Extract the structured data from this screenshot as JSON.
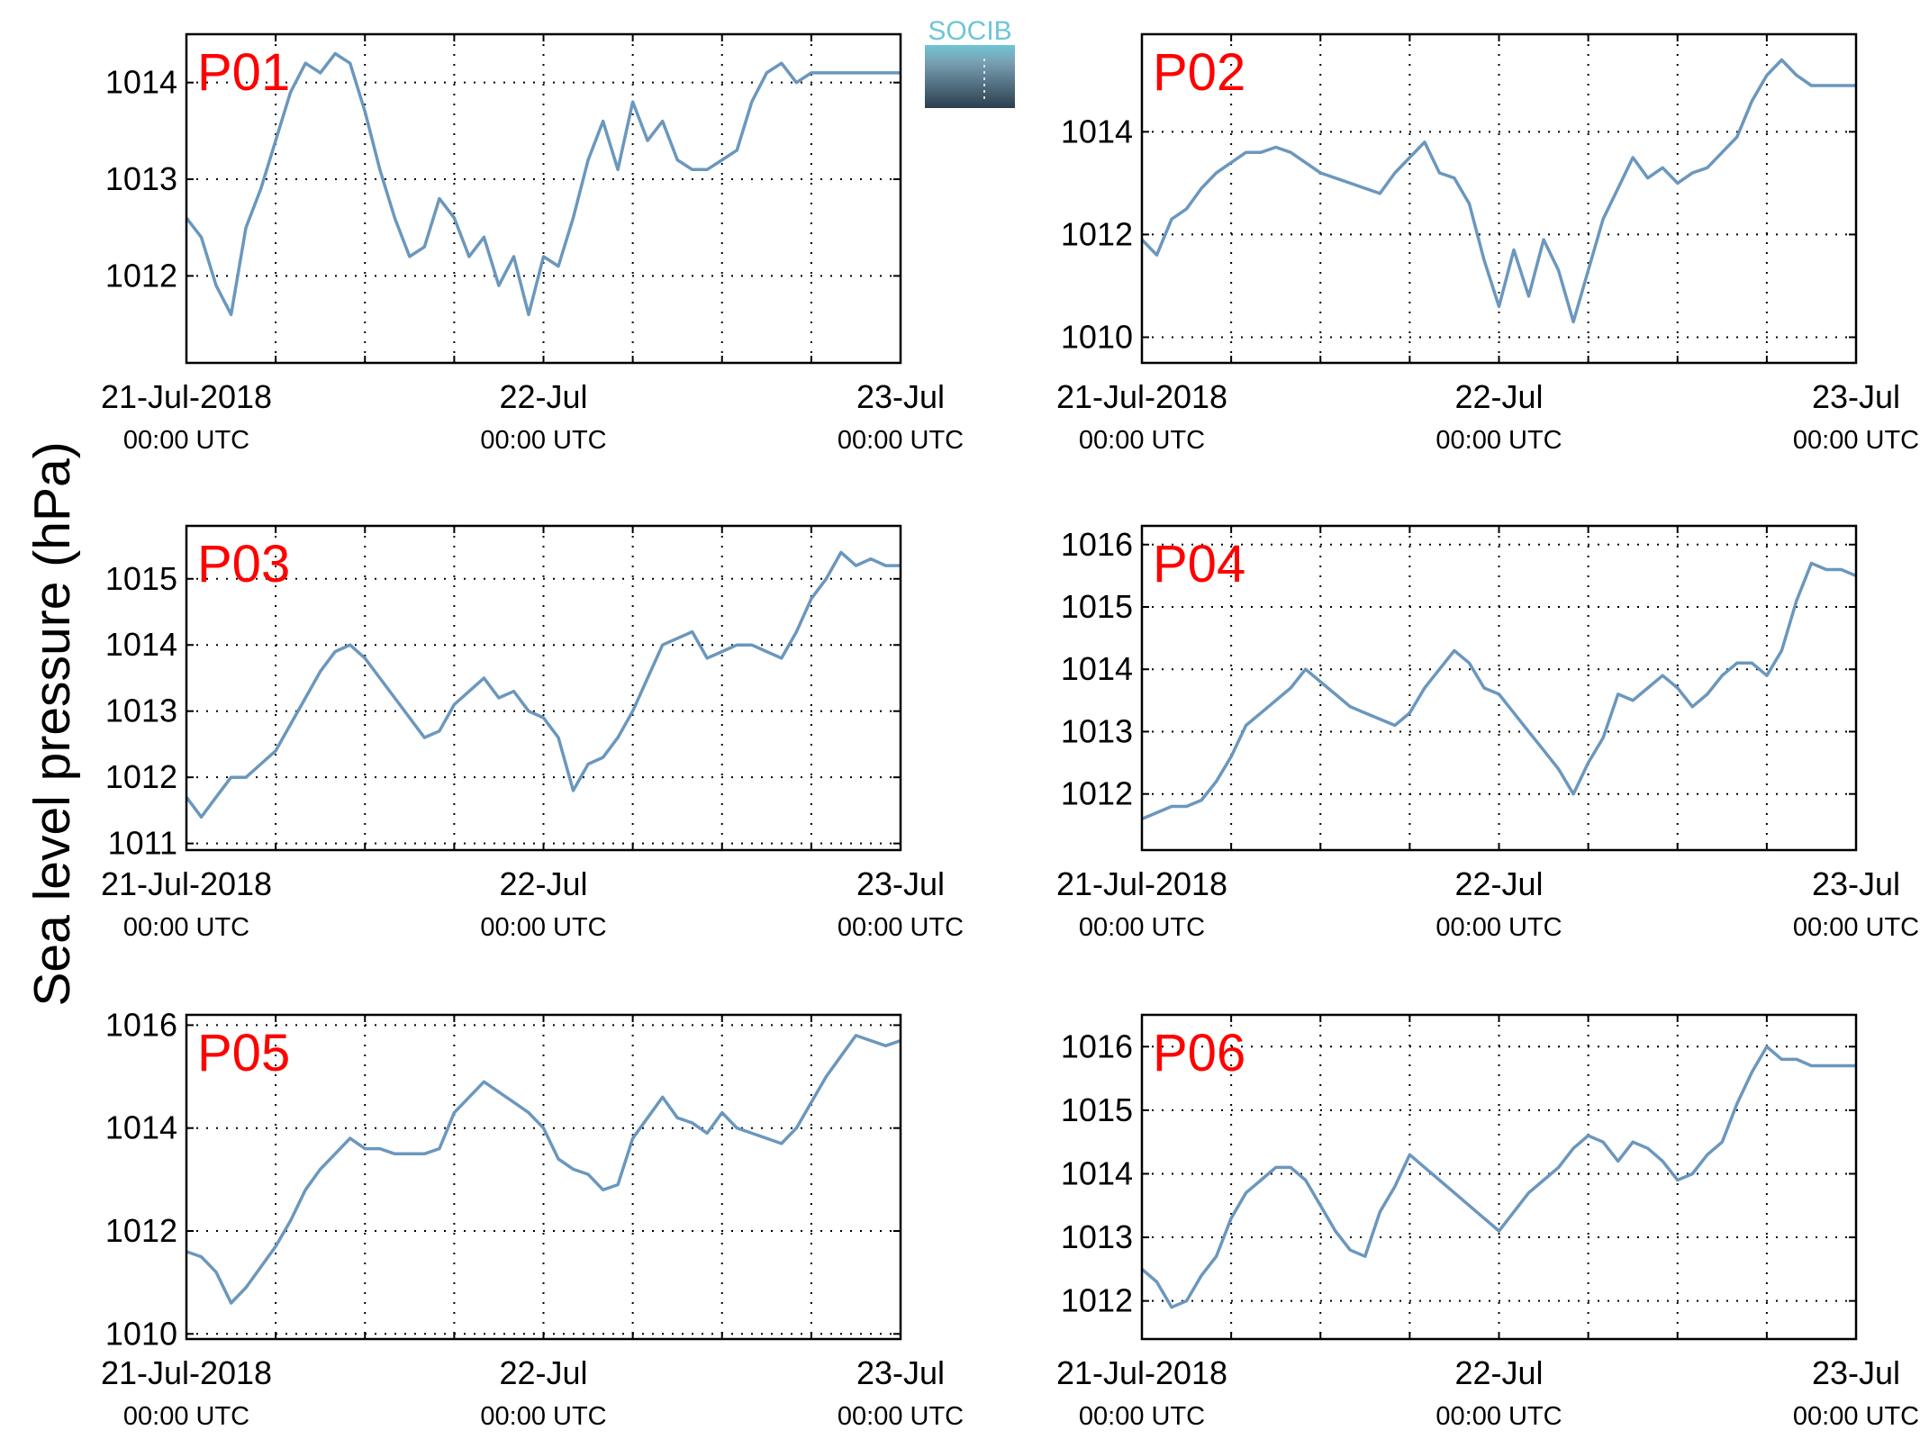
{
  "figure": {
    "ylabel": "Sea level pressure (hPa)",
    "logo_text": "SOCIB",
    "x_tick_labels": [
      "21-Jul-2018",
      "22-Jul",
      "23-Jul"
    ],
    "x_tick_sublabels": [
      "00:00 UTC",
      "00:00 UTC",
      "00:00 UTC"
    ],
    "line_color": "#6b97bd",
    "label_color": "#ff0000"
  },
  "chart_data": [
    {
      "type": "line",
      "title": "P01",
      "xlim": [
        0,
        48
      ],
      "ylim": [
        1011.1,
        1014.5
      ],
      "yticks": [
        1012,
        1013,
        1014
      ],
      "x": [
        0,
        1,
        2,
        3,
        4,
        5,
        6,
        7,
        8,
        9,
        10,
        11,
        12,
        13,
        14,
        15,
        16,
        17,
        18,
        19,
        20,
        21,
        22,
        23,
        24,
        25,
        26,
        27,
        28,
        29,
        30,
        31,
        32,
        33,
        34,
        35,
        36,
        37,
        38,
        39,
        40,
        41,
        42,
        43,
        44,
        45,
        46,
        47,
        48
      ],
      "y": [
        1012.6,
        1012.4,
        1011.9,
        1011.6,
        1012.5,
        1012.9,
        1013.4,
        1013.9,
        1014.2,
        1014.1,
        1014.3,
        1014.2,
        1013.7,
        1013.1,
        1012.6,
        1012.2,
        1012.3,
        1012.8,
        1012.6,
        1012.2,
        1012.4,
        1011.9,
        1012.2,
        1011.6,
        1012.2,
        1012.1,
        1012.6,
        1013.2,
        1013.6,
        1013.1,
        1013.8,
        1013.4,
        1013.6,
        1013.2,
        1013.1,
        1013.1,
        1013.2,
        1013.3,
        1013.8,
        1014.1,
        1014.2,
        1014.0,
        1014.1,
        1014.1,
        1014.1,
        1014.1,
        1014.1,
        1014.1,
        1014.1
      ]
    },
    {
      "type": "line",
      "title": "P02",
      "xlim": [
        0,
        48
      ],
      "ylim": [
        1009.5,
        1015.9
      ],
      "yticks": [
        1010,
        1012,
        1014
      ],
      "x": [
        0,
        1,
        2,
        3,
        4,
        5,
        6,
        7,
        8,
        9,
        10,
        11,
        12,
        13,
        14,
        15,
        16,
        17,
        18,
        19,
        20,
        21,
        22,
        23,
        24,
        25,
        26,
        27,
        28,
        29,
        30,
        31,
        32,
        33,
        34,
        35,
        36,
        37,
        38,
        39,
        40,
        41,
        42,
        43,
        44,
        45,
        46,
        47,
        48
      ],
      "y": [
        1011.9,
        1011.6,
        1012.3,
        1012.5,
        1012.9,
        1013.2,
        1013.4,
        1013.6,
        1013.6,
        1013.7,
        1013.6,
        1013.4,
        1013.2,
        1013.1,
        1013.0,
        1012.9,
        1012.8,
        1013.2,
        1013.5,
        1013.8,
        1013.2,
        1013.1,
        1012.6,
        1011.5,
        1010.6,
        1011.7,
        1010.8,
        1011.9,
        1011.3,
        1010.3,
        1011.3,
        1012.3,
        1012.9,
        1013.5,
        1013.1,
        1013.3,
        1013.0,
        1013.2,
        1013.3,
        1013.6,
        1013.9,
        1014.6,
        1015.1,
        1015.4,
        1015.1,
        1014.9,
        1014.9,
        1014.9,
        1014.9
      ]
    },
    {
      "type": "line",
      "title": "P03",
      "xlim": [
        0,
        48
      ],
      "ylim": [
        1010.9,
        1015.8
      ],
      "yticks": [
        1011,
        1012,
        1013,
        1014,
        1015
      ],
      "x": [
        0,
        1,
        2,
        3,
        4,
        5,
        6,
        7,
        8,
        9,
        10,
        11,
        12,
        13,
        14,
        15,
        16,
        17,
        18,
        19,
        20,
        21,
        22,
        23,
        24,
        25,
        26,
        27,
        28,
        29,
        30,
        31,
        32,
        33,
        34,
        35,
        36,
        37,
        38,
        39,
        40,
        41,
        42,
        43,
        44,
        45,
        46,
        47,
        48
      ],
      "y": [
        1011.7,
        1011.4,
        1011.7,
        1012.0,
        1012.0,
        1012.2,
        1012.4,
        1012.8,
        1013.2,
        1013.6,
        1013.9,
        1014.0,
        1013.8,
        1013.5,
        1013.2,
        1012.9,
        1012.6,
        1012.7,
        1013.1,
        1013.3,
        1013.5,
        1013.2,
        1013.3,
        1013.0,
        1012.9,
        1012.6,
        1011.8,
        1012.2,
        1012.3,
        1012.6,
        1013.0,
        1013.5,
        1014.0,
        1014.1,
        1014.2,
        1013.8,
        1013.9,
        1014.0,
        1014.0,
        1013.9,
        1013.8,
        1014.2,
        1014.7,
        1015.0,
        1015.4,
        1015.2,
        1015.3,
        1015.2,
        1015.2
      ]
    },
    {
      "type": "line",
      "title": "P04",
      "xlim": [
        0,
        48
      ],
      "ylim": [
        1011.1,
        1016.3
      ],
      "yticks": [
        1012,
        1013,
        1014,
        1015,
        1016
      ],
      "x": [
        0,
        1,
        2,
        3,
        4,
        5,
        6,
        7,
        8,
        9,
        10,
        11,
        12,
        13,
        14,
        15,
        16,
        17,
        18,
        19,
        20,
        21,
        22,
        23,
        24,
        25,
        26,
        27,
        28,
        29,
        30,
        31,
        32,
        33,
        34,
        35,
        36,
        37,
        38,
        39,
        40,
        41,
        42,
        43,
        44,
        45,
        46,
        47,
        48
      ],
      "y": [
        1011.6,
        1011.7,
        1011.8,
        1011.8,
        1011.9,
        1012.2,
        1012.6,
        1013.1,
        1013.3,
        1013.5,
        1013.7,
        1014.0,
        1013.8,
        1013.6,
        1013.4,
        1013.3,
        1013.2,
        1013.1,
        1013.3,
        1013.7,
        1014.0,
        1014.3,
        1014.1,
        1013.7,
        1013.6,
        1013.3,
        1013.0,
        1012.7,
        1012.4,
        1012.0,
        1012.5,
        1012.9,
        1013.6,
        1013.5,
        1013.7,
        1013.9,
        1013.7,
        1013.4,
        1013.6,
        1013.9,
        1014.1,
        1014.1,
        1013.9,
        1014.3,
        1015.1,
        1015.7,
        1015.6,
        1015.6,
        1015.5
      ]
    },
    {
      "type": "line",
      "title": "P05",
      "xlim": [
        0,
        48
      ],
      "ylim": [
        1009.9,
        1016.2
      ],
      "yticks": [
        1010,
        1012,
        1014,
        1016
      ],
      "x": [
        0,
        1,
        2,
        3,
        4,
        5,
        6,
        7,
        8,
        9,
        10,
        11,
        12,
        13,
        14,
        15,
        16,
        17,
        18,
        19,
        20,
        21,
        22,
        23,
        24,
        25,
        26,
        27,
        28,
        29,
        30,
        31,
        32,
        33,
        34,
        35,
        36,
        37,
        38,
        39,
        40,
        41,
        42,
        43,
        44,
        45,
        46,
        47,
        48
      ],
      "y": [
        1011.6,
        1011.5,
        1011.2,
        1010.6,
        1010.9,
        1011.3,
        1011.7,
        1012.2,
        1012.8,
        1013.2,
        1013.5,
        1013.8,
        1013.6,
        1013.6,
        1013.5,
        1013.5,
        1013.5,
        1013.6,
        1014.3,
        1014.6,
        1014.9,
        1014.7,
        1014.5,
        1014.3,
        1014.0,
        1013.4,
        1013.2,
        1013.1,
        1012.8,
        1012.9,
        1013.8,
        1014.2,
        1014.6,
        1014.2,
        1014.1,
        1013.9,
        1014.3,
        1014.0,
        1013.9,
        1013.8,
        1013.7,
        1014.0,
        1014.5,
        1015.0,
        1015.4,
        1015.8,
        1015.7,
        1015.6,
        1015.7
      ]
    },
    {
      "type": "line",
      "title": "P06",
      "xlim": [
        0,
        48
      ],
      "ylim": [
        1011.4,
        1016.5
      ],
      "yticks": [
        1012,
        1013,
        1014,
        1015,
        1016
      ],
      "x": [
        0,
        1,
        2,
        3,
        4,
        5,
        6,
        7,
        8,
        9,
        10,
        11,
        12,
        13,
        14,
        15,
        16,
        17,
        18,
        19,
        20,
        21,
        22,
        23,
        24,
        25,
        26,
        27,
        28,
        29,
        30,
        31,
        32,
        33,
        34,
        35,
        36,
        37,
        38,
        39,
        40,
        41,
        42,
        43,
        44,
        45,
        46,
        47,
        48
      ],
      "y": [
        1012.5,
        1012.3,
        1011.9,
        1012.0,
        1012.4,
        1012.7,
        1013.3,
        1013.7,
        1013.9,
        1014.1,
        1014.1,
        1013.9,
        1013.5,
        1013.1,
        1012.8,
        1012.7,
        1013.4,
        1013.8,
        1014.3,
        1014.1,
        1013.9,
        1013.7,
        1013.5,
        1013.3,
        1013.1,
        1013.4,
        1013.7,
        1013.9,
        1014.1,
        1014.4,
        1014.6,
        1014.5,
        1014.2,
        1014.5,
        1014.4,
        1014.2,
        1013.9,
        1014.0,
        1014.3,
        1014.5,
        1015.1,
        1015.6,
        1016.0,
        1015.8,
        1015.8,
        1015.7,
        1015.7,
        1015.7,
        1015.7
      ]
    }
  ]
}
